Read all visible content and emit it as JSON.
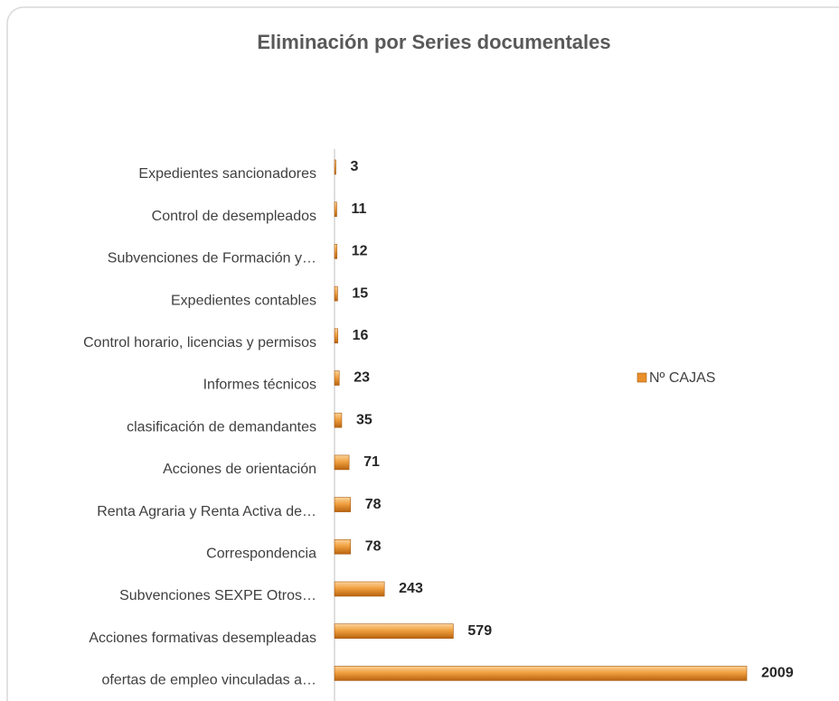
{
  "chart_data": {
    "type": "bar",
    "orientation": "horizontal",
    "title": "Eliminación por Series documentales",
    "categories": [
      "Expedientes sancionadores",
      "Control de desempleados",
      "Subvenciones de Formación y…",
      "Expedientes contables",
      "Control horario, licencias y permisos",
      "Informes técnicos",
      "clasificación de demandantes",
      "Acciones de orientación",
      "Renta Agraria y Renta Activa de…",
      "Correspondencia",
      "Subvenciones SEXPE Otros…",
      "Acciones formativas desempleadas",
      "ofertas de empleo vinculadas a…"
    ],
    "series": [
      {
        "name": "Nº CAJAS",
        "color": "#e8902a",
        "values": [
          3,
          11,
          12,
          15,
          16,
          23,
          35,
          71,
          78,
          78,
          243,
          579,
          2009
        ]
      }
    ],
    "legend": "right"
  }
}
